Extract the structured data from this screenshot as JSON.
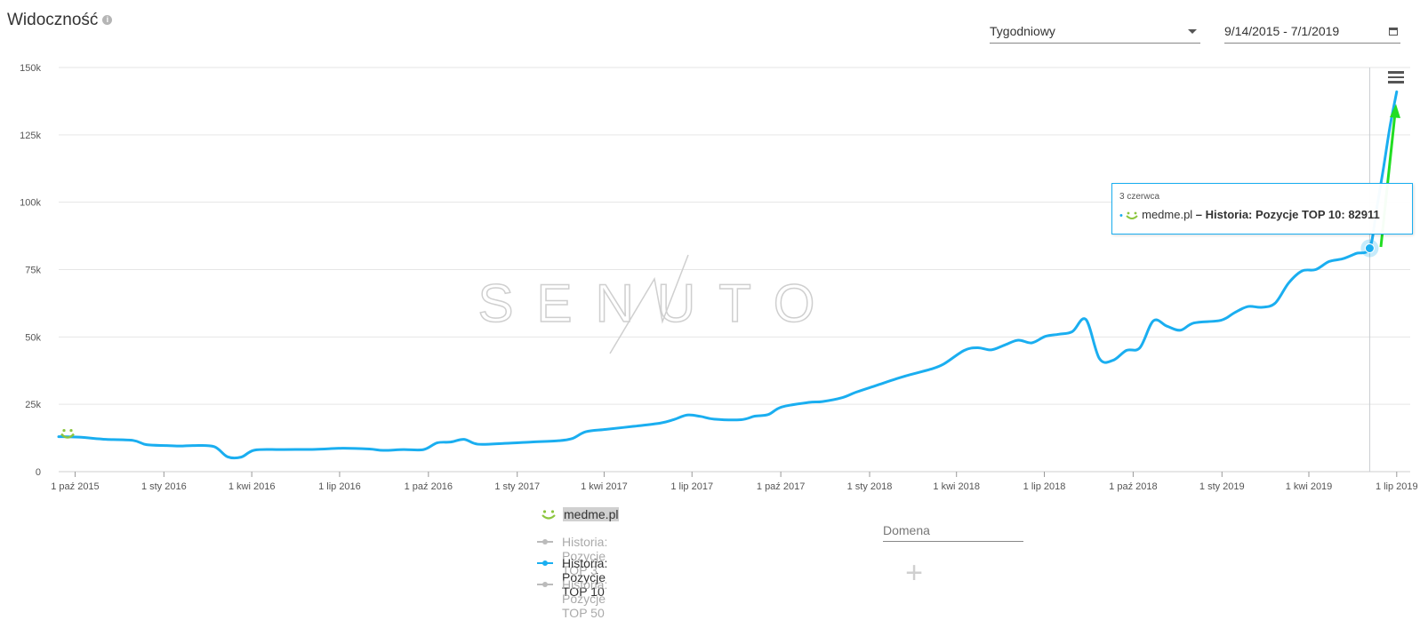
{
  "header": {
    "title": "Widoczność",
    "info_glyph": "i",
    "period_select": "Tygodniowy",
    "date_range": "9/14/2015 - 7/1/2019"
  },
  "colors": {
    "series_active": "#1aaef0",
    "series_inactive": "#bbbbbb",
    "domain_smiley": "#8cc63f",
    "annotation_arrow": "#22dd22",
    "grid": "#e6e6e6"
  },
  "watermark": "SENUTO",
  "tooltip": {
    "date": "3 czerwca",
    "domain": "medme.pl",
    "separator": " – ",
    "series": "Historia: Pozycje TOP 10",
    "value": "82911"
  },
  "legend": {
    "domain": "medme.pl",
    "items": [
      {
        "label": "Historia: Pozycje TOP 3",
        "active": false
      },
      {
        "label": "Historia: Pozycje TOP 10",
        "active": true
      },
      {
        "label": "Historia: Pozycje TOP 50",
        "active": false
      }
    ]
  },
  "domain_input": {
    "placeholder": "Domena"
  },
  "add_button": "+",
  "chart_data": {
    "type": "line",
    "title": "Widoczność",
    "y_ticks": [
      "0",
      "25k",
      "50k",
      "75k",
      "100k",
      "125k",
      "150k"
    ],
    "ylim": [
      0,
      150000
    ],
    "x_ticks": [
      {
        "label": "1 paź 2015",
        "date": "2015-10-01"
      },
      {
        "label": "1 sty 2016",
        "date": "2016-01-01"
      },
      {
        "label": "1 kwi 2016",
        "date": "2016-04-01"
      },
      {
        "label": "1 lip 2016",
        "date": "2016-07-01"
      },
      {
        "label": "1 paź 2016",
        "date": "2016-10-01"
      },
      {
        "label": "1 sty 2017",
        "date": "2017-01-01"
      },
      {
        "label": "1 kwi 2017",
        "date": "2017-04-01"
      },
      {
        "label": "1 lip 2017",
        "date": "2017-07-01"
      },
      {
        "label": "1 paź 2017",
        "date": "2017-10-01"
      },
      {
        "label": "1 sty 2018",
        "date": "2018-01-01"
      },
      {
        "label": "1 kwi 2018",
        "date": "2018-04-01"
      },
      {
        "label": "1 lip 2018",
        "date": "2018-07-01"
      },
      {
        "label": "1 paź 2018",
        "date": "2018-10-01"
      },
      {
        "label": "1 sty 2019",
        "date": "2019-01-01"
      },
      {
        "label": "1 kwi 2019",
        "date": "2019-04-01"
      },
      {
        "label": "1 lip 2019",
        "date": "2019-07-01"
      }
    ],
    "xlim": [
      "2015-09-14",
      "2019-07-15"
    ],
    "grid": true,
    "crosshair_date": "2019-06-03",
    "series": [
      {
        "name": "Historia: Pozycje TOP 10",
        "points": [
          [
            "2015-09-14",
            13000
          ],
          [
            "2015-10-05",
            12800
          ],
          [
            "2015-11-02",
            12000
          ],
          [
            "2015-11-30",
            11600
          ],
          [
            "2015-12-14",
            10000
          ],
          [
            "2016-01-04",
            9700
          ],
          [
            "2016-01-18",
            9500
          ],
          [
            "2016-02-01",
            9700
          ],
          [
            "2016-02-22",
            9300
          ],
          [
            "2016-03-07",
            5500
          ],
          [
            "2016-03-21",
            5400
          ],
          [
            "2016-04-04",
            8000
          ],
          [
            "2016-05-02",
            8200
          ],
          [
            "2016-06-06",
            8300
          ],
          [
            "2016-07-04",
            8700
          ],
          [
            "2016-08-01",
            8400
          ],
          [
            "2016-08-15",
            7900
          ],
          [
            "2016-09-05",
            8200
          ],
          [
            "2016-09-26",
            8200
          ],
          [
            "2016-10-10",
            10700
          ],
          [
            "2016-10-24",
            11000
          ],
          [
            "2016-11-07",
            12000
          ],
          [
            "2016-11-21",
            10200
          ],
          [
            "2016-12-19",
            10500
          ],
          [
            "2017-01-16",
            11000
          ],
          [
            "2017-02-13",
            11500
          ],
          [
            "2017-02-27",
            12300
          ],
          [
            "2017-03-13",
            14800
          ],
          [
            "2017-04-03",
            15700
          ],
          [
            "2017-05-01",
            16800
          ],
          [
            "2017-05-29",
            18000
          ],
          [
            "2017-06-12",
            19300
          ],
          [
            "2017-06-26",
            21000
          ],
          [
            "2017-07-10",
            20500
          ],
          [
            "2017-07-24",
            19500
          ],
          [
            "2017-08-21",
            19300
          ],
          [
            "2017-09-04",
            20600
          ],
          [
            "2017-09-18",
            21200
          ],
          [
            "2017-10-02",
            24000
          ],
          [
            "2017-10-30",
            25700
          ],
          [
            "2017-11-13",
            26000
          ],
          [
            "2017-12-04",
            27500
          ],
          [
            "2017-12-18",
            29500
          ],
          [
            "2018-01-08",
            32000
          ],
          [
            "2018-01-29",
            34500
          ],
          [
            "2018-02-12",
            36000
          ],
          [
            "2018-03-05",
            38000
          ],
          [
            "2018-03-19",
            40000
          ],
          [
            "2018-04-09",
            45000
          ],
          [
            "2018-04-23",
            46000
          ],
          [
            "2018-05-07",
            45200
          ],
          [
            "2018-05-21",
            47000
          ],
          [
            "2018-06-04",
            48800
          ],
          [
            "2018-06-18",
            47800
          ],
          [
            "2018-07-02",
            50200
          ],
          [
            "2018-07-16",
            51000
          ],
          [
            "2018-07-30",
            52000
          ],
          [
            "2018-08-13",
            56500
          ],
          [
            "2018-08-27",
            42000
          ],
          [
            "2018-09-10",
            41300
          ],
          [
            "2018-09-24",
            45000
          ],
          [
            "2018-10-08",
            46000
          ],
          [
            "2018-10-22",
            56000
          ],
          [
            "2018-11-05",
            54000
          ],
          [
            "2018-11-19",
            52500
          ],
          [
            "2018-12-03",
            55200
          ],
          [
            "2018-12-31",
            56200
          ],
          [
            "2019-01-14",
            59000
          ],
          [
            "2019-01-28",
            61300
          ],
          [
            "2019-02-11",
            61000
          ],
          [
            "2019-02-25",
            62500
          ],
          [
            "2019-03-11",
            70000
          ],
          [
            "2019-03-25",
            74500
          ],
          [
            "2019-04-08",
            75000
          ],
          [
            "2019-04-22",
            78000
          ],
          [
            "2019-05-06",
            79000
          ],
          [
            "2019-05-20",
            81000
          ],
          [
            "2019-06-03",
            82911
          ],
          [
            "2019-06-10",
            97000
          ],
          [
            "2019-06-17",
            112000
          ],
          [
            "2019-06-24",
            128000
          ],
          [
            "2019-07-01",
            141000
          ]
        ]
      }
    ]
  }
}
